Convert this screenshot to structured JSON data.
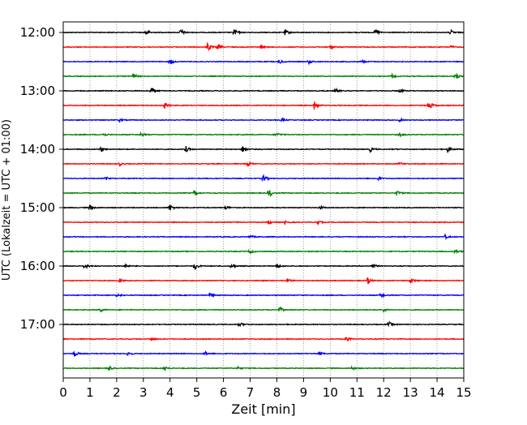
{
  "chart_data": {
    "type": "line",
    "chart_kind": "helicorder seismogram",
    "xlabel": "Zeit  [min]",
    "ylabel": "UTC (Lokalzeit = UTC + 01:00)",
    "xlim": [
      0,
      15
    ],
    "x_ticks": [
      0,
      1,
      2,
      3,
      4,
      5,
      6,
      7,
      8,
      9,
      10,
      11,
      12,
      13,
      14,
      15
    ],
    "x_tick_labels": [
      "0",
      "1",
      "2",
      "3",
      "4",
      "5",
      "6",
      "7",
      "8",
      "9",
      "10",
      "11",
      "12",
      "13",
      "14",
      "15"
    ],
    "y_tick_labels": [
      "12:00",
      "13:00",
      "14:00",
      "15:00",
      "16:00",
      "17:00"
    ],
    "vertical_grid": true,
    "grid_style": "dotted",
    "trace_color_cycle": [
      "#000000",
      "#ff0000",
      "#0000ff",
      "#008000"
    ],
    "traces": [
      {
        "start": "12:00",
        "bursts": [
          [
            3.1,
            0.8
          ],
          [
            4.4,
            0.8
          ],
          [
            6.4,
            1.0
          ],
          [
            8.3,
            0.7
          ],
          [
            11.7,
            0.7
          ],
          [
            14.5,
            0.6
          ]
        ]
      },
      {
        "start": "12:15",
        "bursts": [
          [
            5.4,
            1.0
          ],
          [
            5.8,
            0.6
          ],
          [
            7.4,
            0.4
          ],
          [
            10.0,
            0.4
          ],
          [
            14.5,
            0.3
          ]
        ]
      },
      {
        "start": "12:30",
        "bursts": [
          [
            4.0,
            0.6
          ],
          [
            8.1,
            0.5
          ],
          [
            9.2,
            0.4
          ],
          [
            11.2,
            0.3
          ]
        ]
      },
      {
        "start": "12:45",
        "bursts": [
          [
            2.6,
            0.7
          ],
          [
            12.3,
            0.4
          ],
          [
            14.7,
            0.6
          ]
        ]
      },
      {
        "start": "13:00",
        "bursts": [
          [
            3.3,
            0.9
          ],
          [
            10.2,
            0.4
          ],
          [
            12.6,
            0.5
          ]
        ]
      },
      {
        "start": "13:15",
        "bursts": [
          [
            3.8,
            0.6
          ],
          [
            9.4,
            0.9
          ],
          [
            13.7,
            1.0
          ]
        ]
      },
      {
        "start": "13:30",
        "bursts": [
          [
            2.1,
            0.3
          ],
          [
            8.2,
            0.3
          ],
          [
            12.6,
            0.3
          ]
        ]
      },
      {
        "start": "13:45",
        "bursts": [
          [
            1.5,
            0.4
          ],
          [
            2.9,
            0.4
          ],
          [
            8.0,
            0.5
          ],
          [
            12.6,
            0.4
          ]
        ]
      },
      {
        "start": "14:00",
        "bursts": [
          [
            1.4,
            0.5
          ],
          [
            4.6,
            0.6
          ],
          [
            6.7,
            0.8
          ],
          [
            11.5,
            0.5
          ],
          [
            14.4,
            0.7
          ]
        ]
      },
      {
        "start": "14:15",
        "bursts": [
          [
            2.1,
            0.4
          ],
          [
            6.9,
            0.5
          ],
          [
            12.6,
            0.4
          ]
        ]
      },
      {
        "start": "14:30",
        "bursts": [
          [
            1.6,
            0.4
          ],
          [
            7.5,
            0.9
          ],
          [
            11.8,
            0.4
          ]
        ]
      },
      {
        "start": "14:45",
        "bursts": [
          [
            4.9,
            0.7
          ],
          [
            7.7,
            1.0
          ],
          [
            12.5,
            0.6
          ]
        ]
      },
      {
        "start": "15:00",
        "bursts": [
          [
            1.0,
            0.6
          ],
          [
            4.0,
            0.7
          ],
          [
            6.1,
            0.4
          ],
          [
            9.6,
            0.4
          ]
        ]
      },
      {
        "start": "15:15",
        "bursts": [
          [
            7.7,
            0.4
          ],
          [
            8.3,
            0.4
          ],
          [
            9.5,
            0.6
          ]
        ]
      },
      {
        "start": "15:30",
        "bursts": [
          [
            7.0,
            0.3
          ],
          [
            14.3,
            0.4
          ]
        ]
      },
      {
        "start": "15:45",
        "bursts": [
          [
            7.0,
            0.4
          ],
          [
            14.7,
            0.4
          ]
        ]
      },
      {
        "start": "16:00",
        "bursts": [
          [
            0.8,
            0.7
          ],
          [
            2.3,
            0.5
          ],
          [
            4.9,
            0.9
          ],
          [
            6.3,
            0.5
          ],
          [
            8.0,
            0.5
          ],
          [
            11.6,
            0.5
          ]
        ]
      },
      {
        "start": "16:15",
        "bursts": [
          [
            2.1,
            0.4
          ],
          [
            8.4,
            0.5
          ],
          [
            11.4,
            0.8
          ],
          [
            13.0,
            0.6
          ]
        ]
      },
      {
        "start": "16:30",
        "bursts": [
          [
            2.0,
            0.5
          ],
          [
            5.5,
            0.5
          ],
          [
            11.9,
            0.5
          ]
        ]
      },
      {
        "start": "16:45",
        "bursts": [
          [
            1.4,
            0.4
          ],
          [
            8.1,
            0.6
          ],
          [
            12.0,
            0.4
          ]
        ]
      },
      {
        "start": "17:00",
        "bursts": [
          [
            6.6,
            0.5
          ],
          [
            12.2,
            0.5
          ]
        ]
      },
      {
        "start": "17:15",
        "bursts": [
          [
            3.3,
            0.4
          ],
          [
            10.6,
            0.6
          ]
        ]
      },
      {
        "start": "17:30",
        "bursts": [
          [
            0.4,
            0.8
          ],
          [
            2.4,
            0.5
          ],
          [
            5.3,
            0.4
          ],
          [
            9.6,
            0.4
          ]
        ]
      },
      {
        "start": "17:45",
        "bursts": [
          [
            1.7,
            0.5
          ],
          [
            3.8,
            0.4
          ],
          [
            6.5,
            0.4
          ],
          [
            10.8,
            0.4
          ]
        ]
      }
    ]
  }
}
